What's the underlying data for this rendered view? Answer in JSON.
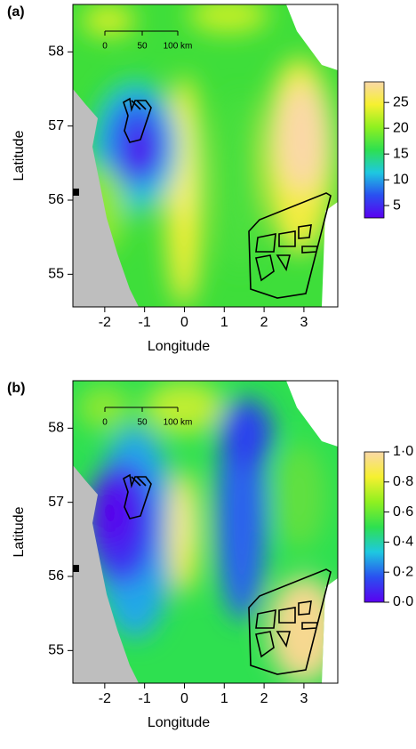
{
  "chart_data": [
    {
      "type": "heatmap",
      "panel_label": "(a)",
      "xlabel": "Longitude",
      "ylabel": "Latitude",
      "xlim": [
        -2.8,
        3.85
      ],
      "ylim": [
        54.56,
        58.64
      ],
      "xticks": [
        -2,
        -1,
        0,
        1,
        2,
        3
      ],
      "yticks": [
        55,
        56,
        57,
        58
      ],
      "colorbar_lim": [
        2.6,
        29
      ],
      "colorbar_ticks": [
        5,
        10,
        15,
        20,
        25
      ],
      "colormap": [
        "#5a00f0",
        "#2a50f0",
        "#1ec8e0",
        "#2ee050",
        "#8ff020",
        "#f6f030",
        "#fad8a8"
      ],
      "scale_bar": [
        "0",
        "50",
        "100 km"
      ]
    },
    {
      "type": "heatmap",
      "panel_label": "(b)",
      "xlabel": "Longitude",
      "ylabel": "Latitude",
      "xlim": [
        -2.8,
        3.85
      ],
      "ylim": [
        54.56,
        58.64
      ],
      "xticks": [
        -2,
        -1,
        0,
        1,
        2,
        3
      ],
      "yticks": [
        55,
        56,
        57,
        58
      ],
      "colorbar_lim": [
        0,
        1.0
      ],
      "colorbar_ticks": [
        {
          "value": 0,
          "label": "0·0"
        },
        {
          "value": 0.2,
          "label": "0·2"
        },
        {
          "value": 0.4,
          "label": "0·4"
        },
        {
          "value": 0.6,
          "label": "0·6"
        },
        {
          "value": 0.8,
          "label": "0·8"
        },
        {
          "value": 1.0,
          "label": "1·0"
        }
      ],
      "colormap": [
        "#5a00f0",
        "#2a50f0",
        "#1ec8e0",
        "#2ee050",
        "#8ff020",
        "#f6f030",
        "#fad8a8"
      ],
      "scale_bar": [
        "0",
        "50",
        "100 km"
      ]
    }
  ]
}
